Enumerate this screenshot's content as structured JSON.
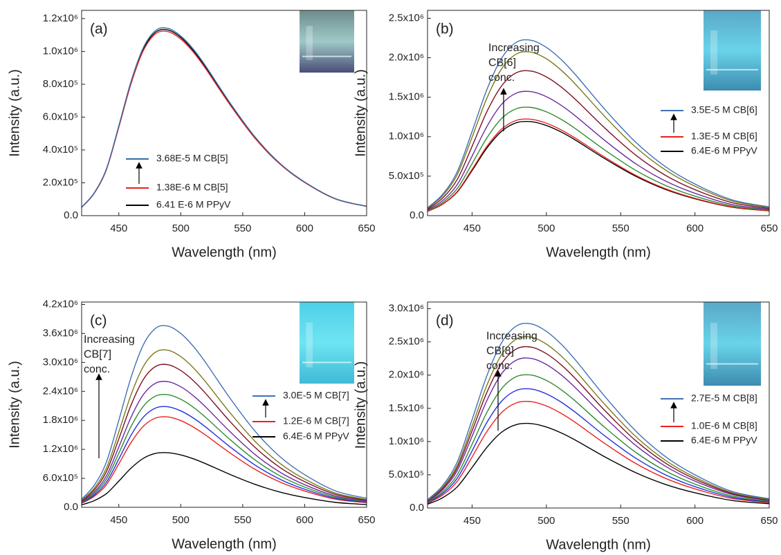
{
  "chart_data": [
    {
      "type": "line",
      "panel_label": "(a)",
      "xlabel": "Wavelength (nm)",
      "ylabel": "Intensity (a.u.)",
      "xlim": [
        420,
        650
      ],
      "ylim": [
        0,
        1250000
      ],
      "xticks": [
        450,
        500,
        550,
        600,
        650
      ],
      "yticks": [
        {
          "value": 0,
          "label": "0.0"
        },
        {
          "value": 200000,
          "label": "2.0x10⁵"
        },
        {
          "value": 400000,
          "label": "4.0x10⁵"
        },
        {
          "value": 600000,
          "label": "6.0x10⁵"
        },
        {
          "value": 800000,
          "label": "8.0x10⁵"
        },
        {
          "value": 1000000,
          "label": "1.0x10⁶"
        },
        {
          "value": 1200000,
          "label": "1.2x10⁶"
        }
      ],
      "x": [
        420,
        430,
        440,
        450,
        460,
        470,
        480,
        490,
        500,
        510,
        520,
        540,
        560,
        580,
        600,
        625,
        650
      ],
      "series": [
        {
          "name": "6.41 E-6 M PPyV",
          "color": "#000000",
          "values": [
            51000,
            136000,
            283000,
            542000,
            814000,
            1017000,
            1119000,
            1130000,
            1085000,
            1006000,
            904000,
            678000,
            475000,
            316000,
            203000,
            102000,
            57000
          ]
        },
        {
          "name": "1.38E-6 M CB[5]",
          "color": "#e8201f",
          "values": [
            50000,
            134000,
            280000,
            538000,
            806000,
            1008000,
            1109000,
            1120000,
            1075000,
            997000,
            896000,
            672000,
            470000,
            314000,
            202000,
            101000,
            56000
          ]
        },
        {
          "name": "3.68E-5 M CB[5]",
          "color": "#2f6fa8",
          "values": [
            51000,
            137000,
            285000,
            547000,
            821000,
            1026000,
            1129000,
            1140000,
            1094000,
            1015000,
            912000,
            684000,
            479000,
            319000,
            205000,
            103000,
            57000
          ]
        }
      ]
    },
    {
      "type": "line",
      "panel_label": "(b)",
      "annotation": [
        "Increasing",
        "CB[6]",
        "conc."
      ],
      "xlabel": "Wavelength (nm)",
      "ylabel": "Intensity (a.u.)",
      "xlim": [
        420,
        650
      ],
      "ylim": [
        0,
        2600000
      ],
      "xticks": [
        450,
        500,
        550,
        600,
        650
      ],
      "yticks": [
        {
          "value": 0,
          "label": "0.0"
        },
        {
          "value": 500000,
          "label": "5.0x10⁵"
        },
        {
          "value": 1000000,
          "label": "1.0x10⁶"
        },
        {
          "value": 1500000,
          "label": "1.5x10⁶"
        },
        {
          "value": 2000000,
          "label": "2.0x10⁶"
        },
        {
          "value": 2500000,
          "label": "2.5x10⁶"
        }
      ],
      "x": [
        420,
        430,
        440,
        450,
        460,
        470,
        480,
        490,
        500,
        510,
        520,
        540,
        560,
        580,
        600,
        625,
        650
      ],
      "series": [
        {
          "name": "6.4E-6 M PPyV",
          "color": "#000000",
          "values": [
            54000,
            143000,
            298000,
            571000,
            857000,
            1071000,
            1178000,
            1190000,
            1142000,
            1059000,
            952000,
            714000,
            500000,
            333000,
            214000,
            107000,
            60000
          ]
        },
        {
          "name": "1.3E-5 M CB[6]",
          "color": "#e8201f",
          "values": [
            55000,
            146000,
            305000,
            586000,
            878000,
            1098000,
            1208000,
            1220000,
            1171000,
            1086000,
            976000,
            732000,
            512000,
            342000,
            220000,
            110000,
            61000
          ]
        },
        {
          "color": "#2e8b2e",
          "values": [
            62000,
            164000,
            343000,
            658000,
            986000,
            1233000,
            1356000,
            1370000,
            1315000,
            1219000,
            1096000,
            822000,
            575000,
            384000,
            247000,
            123000,
            69000
          ]
        },
        {
          "color": "#6a2aa0",
          "values": [
            71000,
            188000,
            393000,
            754000,
            1130000,
            1413000,
            1554000,
            1570000,
            1507000,
            1397000,
            1256000,
            942000,
            659000,
            440000,
            283000,
            141000,
            79000
          ]
        },
        {
          "color": "#7a1020",
          "values": [
            82000,
            220000,
            458000,
            878000,
            1318000,
            1647000,
            1812000,
            1830000,
            1757000,
            1629000,
            1464000,
            1098000,
            769000,
            512000,
            329000,
            165000,
            92000
          ]
        },
        {
          "color": "#7a7a1a",
          "values": [
            93000,
            248000,
            518000,
            994000,
            1490000,
            1863000,
            2049000,
            2070000,
            1987000,
            1842000,
            1656000,
            1242000,
            869000,
            580000,
            373000,
            186000,
            104000
          ]
        },
        {
          "name": "3.5E-5 M CB[6]",
          "color": "#3f6fb5",
          "values": [
            100000,
            266000,
            555000,
            1066000,
            1598000,
            1998000,
            2198000,
            2220000,
            2131000,
            1976000,
            1776000,
            1332000,
            932000,
            622000,
            400000,
            200000,
            111000
          ]
        }
      ]
    },
    {
      "type": "line",
      "panel_label": "(c)",
      "annotation": [
        "Increasing",
        "CB[7]",
        "conc."
      ],
      "xlabel": "Wavelength (nm)",
      "ylabel": "Intensity (a.u.)",
      "xlim": [
        420,
        650
      ],
      "ylim": [
        0,
        4250000
      ],
      "xticks": [
        450,
        500,
        550,
        600,
        650
      ],
      "yticks": [
        {
          "value": 0,
          "label": "0.0"
        },
        {
          "value": 600000,
          "label": "6.0x10⁵"
        },
        {
          "value": 1200000,
          "label": "1.2x10⁶"
        },
        {
          "value": 1800000,
          "label": "1.8x10⁶"
        },
        {
          "value": 2400000,
          "label": "2.4x10⁶"
        },
        {
          "value": 3000000,
          "label": "3.0x10⁶"
        },
        {
          "value": 3600000,
          "label": "3.6x10⁶"
        },
        {
          "value": 4200000,
          "label": "4.2x10⁶"
        }
      ],
      "x": [
        420,
        430,
        440,
        450,
        460,
        470,
        480,
        490,
        500,
        510,
        520,
        540,
        560,
        580,
        600,
        625,
        650
      ],
      "series": [
        {
          "name": "6.4E-6 M PPyV",
          "color": "#000000",
          "values": [
            51000,
            136000,
            283000,
            542000,
            814000,
            1017000,
            1119000,
            1130000,
            1085000,
            1006000,
            904000,
            678000,
            475000,
            316000,
            203000,
            102000,
            57000
          ]
        },
        {
          "name": "1.2E-6 M CB[7]",
          "color": "#e8201f",
          "values": [
            84000,
            224000,
            468000,
            898000,
            1346000,
            1683000,
            1851000,
            1870000,
            1795000,
            1664000,
            1496000,
            1122000,
            785000,
            524000,
            337000,
            168000,
            94000
          ]
        },
        {
          "color": "#1f2fe0",
          "values": [
            94000,
            250000,
            520000,
            998000,
            1498000,
            1872000,
            2059000,
            2080000,
            1997000,
            1851000,
            1664000,
            1248000,
            874000,
            582000,
            374000,
            187000,
            104000
          ]
        },
        {
          "color": "#2e8b2e",
          "values": [
            105000,
            280000,
            583000,
            1118000,
            1678000,
            2097000,
            2307000,
            2330000,
            2237000,
            2074000,
            1864000,
            1398000,
            979000,
            652000,
            419000,
            210000,
            117000
          ]
        },
        {
          "color": "#6a2aa0",
          "values": [
            117000,
            312000,
            650000,
            1248000,
            1872000,
            2340000,
            2574000,
            2600000,
            2496000,
            2314000,
            2080000,
            1560000,
            1092000,
            728000,
            468000,
            234000,
            130000
          ]
        },
        {
          "color": "#7a1020",
          "values": [
            133000,
            354000,
            738000,
            1416000,
            2124000,
            2655000,
            2921000,
            2950000,
            2832000,
            2626000,
            2360000,
            1770000,
            1239000,
            826000,
            531000,
            266000,
            148000
          ]
        },
        {
          "color": "#7a7a1a",
          "values": [
            146000,
            390000,
            813000,
            1560000,
            2340000,
            2925000,
            3218000,
            3250000,
            3120000,
            2893000,
            2600000,
            1950000,
            1365000,
            910000,
            585000,
            293000,
            163000
          ]
        },
        {
          "name": "3.0E-5 M CB[7]",
          "color": "#3f6fb5",
          "values": [
            169000,
            450000,
            938000,
            1800000,
            2700000,
            3375000,
            3713000,
            3750000,
            3600000,
            3338000,
            3000000,
            2250000,
            1575000,
            1050000,
            675000,
            338000,
            188000
          ]
        }
      ]
    },
    {
      "type": "line",
      "panel_label": "(d)",
      "annotation": [
        "Increasing",
        "CB[8]",
        "conc."
      ],
      "xlabel": "Wavelength (nm)",
      "ylabel": "Intensity (a.u.)",
      "xlim": [
        420,
        650
      ],
      "ylim": [
        0,
        3100000
      ],
      "xticks": [
        450,
        500,
        550,
        600,
        650
      ],
      "yticks": [
        {
          "value": 0,
          "label": "0.0"
        },
        {
          "value": 500000,
          "label": "5.0x10⁵"
        },
        {
          "value": 1000000,
          "label": "1.0x10⁶"
        },
        {
          "value": 1500000,
          "label": "1.5x10⁶"
        },
        {
          "value": 2000000,
          "label": "2.0x10⁶"
        },
        {
          "value": 2500000,
          "label": "2.5x10⁶"
        },
        {
          "value": 3000000,
          "label": "3.0x10⁶"
        }
      ],
      "x": [
        420,
        430,
        440,
        450,
        460,
        470,
        480,
        490,
        500,
        510,
        520,
        540,
        560,
        580,
        600,
        625,
        650
      ],
      "series": [
        {
          "name": "6.4E-6 M PPyV",
          "color": "#000000",
          "values": [
            57000,
            152000,
            318000,
            610000,
            914000,
            1143000,
            1257000,
            1270000,
            1219000,
            1130000,
            1016000,
            762000,
            533000,
            356000,
            229000,
            114000,
            64000
          ]
        },
        {
          "name": "1.0E-6 M CB[8]",
          "color": "#e8201f",
          "values": [
            72000,
            192000,
            400000,
            768000,
            1152000,
            1440000,
            1584000,
            1600000,
            1536000,
            1424000,
            1280000,
            960000,
            672000,
            448000,
            288000,
            144000,
            80000
          ]
        },
        {
          "color": "#1f2fe0",
          "values": [
            81000,
            215000,
            448000,
            859000,
            1289000,
            1611000,
            1772000,
            1790000,
            1718000,
            1593000,
            1432000,
            1074000,
            752000,
            501000,
            322000,
            161000,
            90000
          ]
        },
        {
          "color": "#2e8b2e",
          "values": [
            90000,
            240000,
            500000,
            960000,
            1440000,
            1800000,
            1980000,
            2000000,
            1920000,
            1780000,
            1600000,
            1200000,
            840000,
            560000,
            360000,
            180000,
            100000
          ]
        },
        {
          "color": "#6a2aa0",
          "values": [
            101000,
            270000,
            563000,
            1080000,
            1620000,
            2025000,
            2228000,
            2250000,
            2160000,
            2003000,
            1800000,
            1350000,
            945000,
            630000,
            405000,
            203000,
            113000
          ]
        },
        {
          "color": "#7a1020",
          "values": [
            109000,
            290000,
            605000,
            1162000,
            1742000,
            2178000,
            2396000,
            2420000,
            2323000,
            2154000,
            1936000,
            1452000,
            1016000,
            678000,
            436000,
            218000,
            121000
          ]
        },
        {
          "color": "#7a7a1a",
          "values": [
            116000,
            308000,
            643000,
            1234000,
            1850000,
            2313000,
            2544000,
            2570000,
            2467000,
            2287000,
            2056000,
            1542000,
            1079000,
            720000,
            463000,
            231000,
            129000
          ]
        },
        {
          "name": "2.7E-5 M CB[8]",
          "color": "#3f6fb5",
          "values": [
            125000,
            332000,
            693000,
            1330000,
            1994000,
            2493000,
            2742000,
            2770000,
            2659000,
            2465000,
            2216000,
            1662000,
            1163000,
            776000,
            499000,
            249000,
            139000
          ]
        }
      ]
    }
  ]
}
